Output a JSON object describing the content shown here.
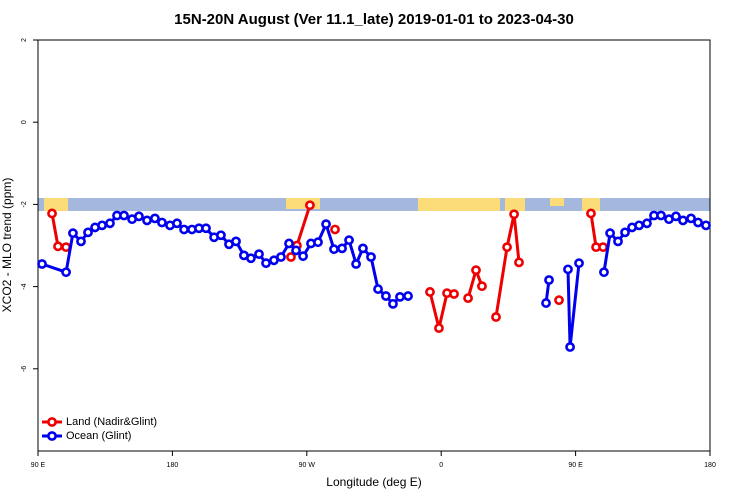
{
  "chart_data": {
    "type": "line",
    "title": "15N-20N August (Ver 11.1_late)   2019-01-01 to 2023-04-30",
    "xlabel": "Longitude (deg E)",
    "ylabel": "XCO2 - MLO trend (ppm)",
    "xlim": [
      90,
      540
    ],
    "xticks": [
      {
        "value": 90,
        "label": "90 E"
      },
      180,
      {
        "value": 270,
        "label": "90 W"
      },
      {
        "value": 360,
        "label": "0"
      },
      {
        "value": 450,
        "label": "90 E"
      },
      {
        "value": 540,
        "label": "180"
      }
    ],
    "ylim": [
      -8,
      2
    ],
    "yticks": [
      -6,
      -4,
      -2,
      0,
      2
    ],
    "legend": "bottom-left",
    "series": [
      {
        "name": "Land (Nadir&Glint)",
        "color": "#ee0000",
        "x": [
          99.4,
          103.4,
          108.8,
          null,
          259.4,
          263.4,
          272.1,
          null,
          288.9,
          null,
          352.5,
          358.5,
          363.9,
          368.6,
          null,
          378,
          383.3,
          387.3,
          null,
          396.7,
          404.1,
          408.8,
          412.1,
          null,
          438.9,
          null,
          460.3,
          463.7,
          468.4
        ],
        "values": [
          -2.22,
          -3.02,
          -3.04,
          null,
          -3.28,
          -3.0,
          -2.02,
          null,
          -2.61,
          null,
          -4.13,
          -5.01,
          -4.16,
          -4.18,
          null,
          -4.28,
          -3.6,
          -3.99,
          null,
          -4.74,
          -3.04,
          -2.24,
          -3.41,
          null,
          -4.33,
          null,
          -2.22,
          -3.04,
          -3.04
        ]
      },
      {
        "name": "Ocean (Glint)",
        "color": "#0000ee",
        "x": [
          92.7,
          108.8,
          113.4,
          118.8,
          123.5,
          128.2,
          132.9,
          138.2,
          142.9,
          147.6,
          153,
          157.6,
          163,
          168.3,
          173,
          178.4,
          183.1,
          187.8,
          193.1,
          197.8,
          202.5,
          207.9,
          212.5,
          217.9,
          222.6,
          227.9,
          232.6,
          238,
          242.7,
          248,
          252.7,
          258.1,
          262.8,
          267.5,
          272.8,
          277.5,
          282.9,
          288.2,
          293.6,
          298.3,
          303,
          307.6,
          313,
          317.7,
          323,
          327.7,
          332.4,
          337.8,
          null,
          430.2,
          432.2,
          null,
          444.9,
          446.3,
          452.3,
          null,
          469,
          473.1,
          478.4,
          483.1,
          487.8,
          492.5,
          497.8,
          502.5,
          507.2,
          512.5,
          517.2,
          521.9,
          527.3,
          532,
          537.3
        ],
        "values": [
          -3.45,
          -3.65,
          -2.7,
          -2.9,
          -2.68,
          -2.56,
          -2.51,
          -2.46,
          -2.27,
          -2.27,
          -2.36,
          -2.29,
          -2.39,
          -2.34,
          -2.44,
          -2.51,
          -2.46,
          -2.61,
          -2.61,
          -2.58,
          -2.58,
          -2.8,
          -2.75,
          -2.97,
          -2.9,
          -3.24,
          -3.31,
          -3.21,
          -3.43,
          -3.36,
          -3.28,
          -2.95,
          -3.12,
          -3.26,
          -2.95,
          -2.92,
          -2.48,
          -3.09,
          -3.07,
          -2.87,
          -3.45,
          -3.07,
          -3.28,
          -4.06,
          -4.23,
          -4.42,
          -4.25,
          -4.23,
          null,
          -4.4,
          -3.84,
          null,
          -3.58,
          -5.47,
          -3.43,
          null,
          -3.65,
          -2.7,
          -2.9,
          -2.68,
          -2.56,
          -2.51,
          -2.46,
          -2.27,
          -2.27,
          -2.36,
          -2.29,
          -2.39,
          -2.34,
          -2.44,
          -2.51
        ]
      }
    ]
  }
}
